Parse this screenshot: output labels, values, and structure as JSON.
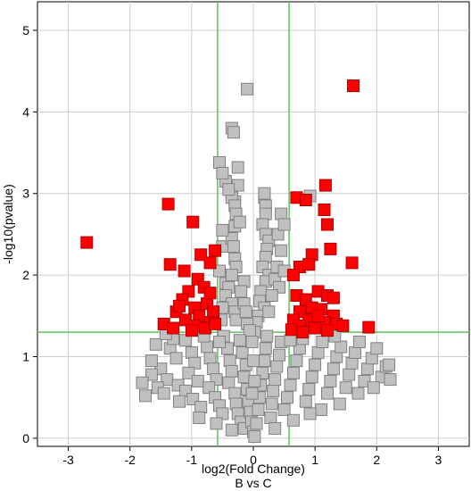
{
  "chart_data": {
    "type": "scatter",
    "xlabel": "log2(Fold Change)",
    "subtitle": "B vs C",
    "ylabel": "-log10(pvalue)",
    "xlim": [
      -3.5,
      3.5
    ],
    "ylim": [
      -0.1,
      5.35
    ],
    "xticks": [
      -3,
      -2,
      -1,
      0,
      1,
      2,
      3
    ],
    "yticks": [
      0,
      1,
      2,
      3,
      4,
      5
    ],
    "grid": true,
    "legend": "none",
    "thresholds": {
      "x": [
        -0.58,
        0.58
      ],
      "y": 1.3
    },
    "colors": {
      "significant": "#ff0000",
      "significant_edge": "#b00000",
      "not_significant": "#c0c0c0",
      "not_significant_edge": "#808080",
      "threshold_line": "#5cc05c",
      "grid": "#cccccc"
    },
    "series": [
      {
        "label_key": "significant",
        "points": [
          [
            1.62,
            4.32
          ],
          [
            -2.7,
            2.4
          ],
          [
            -1.38,
            2.87
          ],
          [
            -0.98,
            2.65
          ],
          [
            -1.35,
            2.13
          ],
          [
            -1.12,
            2.05
          ],
          [
            -0.85,
            2.25
          ],
          [
            -0.7,
            2.15
          ],
          [
            -0.62,
            2.3
          ],
          [
            -0.9,
            1.95
          ],
          [
            -1.05,
            1.8
          ],
          [
            -0.8,
            1.85
          ],
          [
            -1.15,
            1.7
          ],
          [
            -0.95,
            1.6
          ],
          [
            -0.75,
            1.65
          ],
          [
            -1.25,
            1.55
          ],
          [
            -0.88,
            1.5
          ],
          [
            -0.65,
            1.55
          ],
          [
            -1.1,
            1.45
          ],
          [
            -0.7,
            1.42
          ],
          [
            -1.45,
            1.4
          ],
          [
            -1.3,
            1.35
          ],
          [
            -0.95,
            1.38
          ],
          [
            -0.78,
            1.35
          ],
          [
            -0.62,
            1.4
          ],
          [
            -1.0,
            1.32
          ],
          [
            0.7,
            2.95
          ],
          [
            0.85,
            2.92
          ],
          [
            1.17,
            3.1
          ],
          [
            1.15,
            2.8
          ],
          [
            1.2,
            2.62
          ],
          [
            1.25,
            2.32
          ],
          [
            0.95,
            2.25
          ],
          [
            0.75,
            2.1
          ],
          [
            0.9,
            2.13
          ],
          [
            1.6,
            2.15
          ],
          [
            0.65,
            2.0
          ],
          [
            0.7,
            1.75
          ],
          [
            0.85,
            1.7
          ],
          [
            1.05,
            1.8
          ],
          [
            1.2,
            1.75
          ],
          [
            1.3,
            1.72
          ],
          [
            0.95,
            1.6
          ],
          [
            0.75,
            1.55
          ],
          [
            1.1,
            1.58
          ],
          [
            1.3,
            1.5
          ],
          [
            0.65,
            1.45
          ],
          [
            0.9,
            1.45
          ],
          [
            1.15,
            1.42
          ],
          [
            1.35,
            1.4
          ],
          [
            0.75,
            1.38
          ],
          [
            1.0,
            1.35
          ],
          [
            1.45,
            1.38
          ],
          [
            1.87,
            1.36
          ],
          [
            0.62,
            1.33
          ],
          [
            1.2,
            1.32
          ],
          [
            0.8,
            1.3
          ],
          [
            1.05,
            1.5
          ],
          [
            -1.2,
            1.62
          ],
          [
            -0.7,
            1.78
          ]
        ]
      },
      {
        "label_key": "not_significant",
        "points": [
          [
            -0.1,
            4.28
          ],
          [
            -0.35,
            3.8
          ],
          [
            -0.32,
            3.75
          ],
          [
            -0.55,
            3.38
          ],
          [
            -0.25,
            3.32
          ],
          [
            -0.45,
            3.15
          ],
          [
            -0.35,
            3.0
          ],
          [
            -0.3,
            2.9
          ],
          [
            0.18,
            2.95
          ],
          [
            0.2,
            2.85
          ],
          [
            0.2,
            2.75
          ],
          [
            0.15,
            2.62
          ],
          [
            0.2,
            2.5
          ],
          [
            0.25,
            2.42
          ],
          [
            0.22,
            2.32
          ],
          [
            0.2,
            2.22
          ],
          [
            0.15,
            2.1
          ],
          [
            0.25,
            2.0
          ],
          [
            0.2,
            1.92
          ],
          [
            0.12,
            1.8
          ],
          [
            0.1,
            1.68
          ],
          [
            0.18,
            1.6
          ],
          [
            0.08,
            1.5
          ],
          [
            0.05,
            1.42
          ],
          [
            0.02,
            1.3
          ],
          [
            0.45,
            2.75
          ],
          [
            0.4,
            2.5
          ],
          [
            0.45,
            2.3
          ],
          [
            0.38,
            2.1
          ],
          [
            0.35,
            1.95
          ],
          [
            0.5,
            2.62
          ],
          [
            0.5,
            2.05
          ],
          [
            0.42,
            1.85
          ],
          [
            0.3,
            1.75
          ],
          [
            0.25,
            1.55
          ],
          [
            0.18,
            3.0
          ],
          [
            0.92,
            2.97
          ],
          [
            -0.5,
            3.25
          ],
          [
            -0.5,
            2.35
          ],
          [
            -0.45,
            1.9
          ],
          [
            -0.35,
            2.95
          ],
          [
            -0.3,
            2.85
          ],
          [
            -0.28,
            2.75
          ],
          [
            -0.3,
            2.6
          ],
          [
            -0.35,
            2.45
          ],
          [
            -0.32,
            2.35
          ],
          [
            -0.3,
            2.2
          ],
          [
            -0.28,
            2.1
          ],
          [
            -0.35,
            2.0
          ],
          [
            -0.4,
            1.85
          ],
          [
            -0.45,
            1.75
          ],
          [
            -0.35,
            1.65
          ],
          [
            -0.3,
            1.55
          ],
          [
            -0.28,
            1.45
          ],
          [
            -0.5,
            1.6
          ],
          [
            -0.52,
            1.45
          ],
          [
            -0.55,
            2.05
          ],
          [
            -0.5,
            2.55
          ],
          [
            -0.22,
            2.65
          ],
          [
            -0.15,
            1.92
          ],
          [
            -0.2,
            1.8
          ],
          [
            -0.15,
            1.65
          ],
          [
            -0.12,
            1.55
          ],
          [
            -0.1,
            1.4
          ],
          [
            -0.06,
            1.32
          ],
          [
            -0.25,
            3.1
          ],
          [
            -0.4,
            3.05
          ],
          [
            -1.58,
            1.15
          ],
          [
            -1.35,
            1.1
          ],
          [
            -1.25,
            0.98
          ],
          [
            -1.5,
            0.85
          ],
          [
            -1.65,
            0.78
          ],
          [
            -1.4,
            0.72
          ],
          [
            -1.55,
            0.62
          ],
          [
            -1.22,
            0.65
          ],
          [
            -1.45,
            0.55
          ],
          [
            -1.1,
            1.2
          ],
          [
            -1.0,
            1.05
          ],
          [
            -0.95,
            0.92
          ],
          [
            -1.05,
            0.8
          ],
          [
            -0.9,
            0.7
          ],
          [
            -1.1,
            0.58
          ],
          [
            -0.98,
            0.48
          ],
          [
            -0.85,
            0.38
          ],
          [
            -0.75,
            1.12
          ],
          [
            -0.7,
            0.98
          ],
          [
            -0.65,
            0.85
          ],
          [
            -0.6,
            0.72
          ],
          [
            -0.72,
            0.62
          ],
          [
            -0.62,
            0.5
          ],
          [
            -0.55,
            0.4
          ],
          [
            -0.5,
            0.3
          ],
          [
            -0.48,
            1.25
          ],
          [
            -0.42,
            1.1
          ],
          [
            -0.38,
            0.95
          ],
          [
            -0.35,
            0.82
          ],
          [
            -0.4,
            0.68
          ],
          [
            -0.3,
            0.55
          ],
          [
            -0.28,
            0.42
          ],
          [
            -0.25,
            0.3
          ],
          [
            -0.2,
            0.2
          ],
          [
            -0.15,
            0.12
          ],
          [
            -0.22,
            1.2
          ],
          [
            -0.18,
            1.05
          ],
          [
            -0.12,
            0.9
          ],
          [
            -0.15,
            0.75
          ],
          [
            -0.1,
            0.6
          ],
          [
            -0.08,
            0.45
          ],
          [
            -0.05,
            0.32
          ],
          [
            -0.03,
            0.2
          ],
          [
            0.0,
            0.08
          ],
          [
            0.02,
            0.02
          ],
          [
            0.05,
            0.18
          ],
          [
            0.08,
            0.35
          ],
          [
            0.1,
            0.5
          ],
          [
            0.12,
            0.65
          ],
          [
            0.15,
            0.8
          ],
          [
            0.18,
            0.95
          ],
          [
            0.2,
            1.1
          ],
          [
            0.22,
            1.25
          ],
          [
            0.28,
            0.25
          ],
          [
            0.3,
            0.42
          ],
          [
            0.32,
            0.58
          ],
          [
            0.35,
            0.72
          ],
          [
            0.38,
            0.88
          ],
          [
            0.42,
            1.02
          ],
          [
            0.45,
            1.18
          ],
          [
            0.5,
            0.35
          ],
          [
            0.55,
            0.5
          ],
          [
            0.6,
            0.65
          ],
          [
            0.65,
            0.8
          ],
          [
            0.7,
            0.95
          ],
          [
            0.75,
            1.1
          ],
          [
            0.8,
            1.22
          ],
          [
            0.85,
            0.45
          ],
          [
            0.9,
            0.6
          ],
          [
            0.95,
            0.75
          ],
          [
            1.0,
            0.9
          ],
          [
            1.05,
            1.05
          ],
          [
            1.12,
            1.18
          ],
          [
            1.2,
            0.55
          ],
          [
            1.25,
            0.7
          ],
          [
            1.3,
            0.85
          ],
          [
            1.35,
            1.0
          ],
          [
            1.42,
            1.12
          ],
          [
            1.5,
            0.62
          ],
          [
            1.55,
            0.78
          ],
          [
            1.6,
            0.92
          ],
          [
            1.65,
            1.05
          ],
          [
            1.72,
            1.18
          ],
          [
            1.8,
            0.7
          ],
          [
            1.85,
            0.85
          ],
          [
            1.92,
            0.98
          ],
          [
            2.0,
            1.1
          ],
          [
            2.08,
            0.75
          ],
          [
            2.15,
            0.88
          ],
          [
            2.22,
            0.72
          ],
          [
            2.2,
            0.9
          ],
          [
            1.95,
            0.62
          ],
          [
            1.7,
            0.55
          ],
          [
            1.4,
            0.42
          ],
          [
            1.1,
            0.35
          ],
          [
            -1.75,
            0.52
          ],
          [
            -1.8,
            0.68
          ],
          [
            -1.65,
            0.95
          ],
          [
            -1.3,
            1.22
          ],
          [
            -0.8,
            1.25
          ],
          [
            -1.2,
            0.45
          ],
          [
            -0.88,
            0.25
          ],
          [
            -0.6,
            0.18
          ],
          [
            -0.35,
            0.1
          ],
          [
            0.35,
            0.12
          ],
          [
            0.65,
            0.22
          ],
          [
            0.92,
            0.3
          ],
          [
            -0.55,
            1.18
          ],
          [
            0.6,
            1.2
          ],
          [
            -0.02,
            1.18
          ],
          [
            0.02,
            0.7
          ],
          [
            -0.02,
            0.55
          ],
          [
            0.0,
            0.95
          ],
          [
            -1.42,
            1.28
          ],
          [
            1.32,
            1.25
          ]
        ]
      }
    ]
  }
}
